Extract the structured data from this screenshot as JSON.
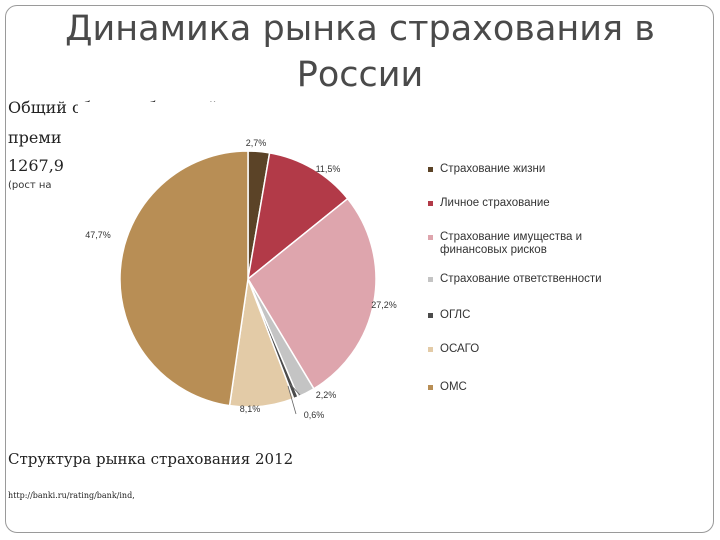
{
  "slide": {
    "title": "Динамика рынка страхования в России",
    "left_line1": "Общий объем собранной",
    "left_line2": "преми",
    "left_line3": "1267,9",
    "left_line4": "(рост на",
    "caption": "Структура рынка страхования 2012",
    "source": "http://banki.ru/rating/bank/ind,"
  },
  "chart_data": {
    "type": "pie",
    "title": "",
    "legend_position": "right",
    "categories": [
      "Страхование жизни",
      "Личное страхование",
      "Страхование имущества и финансовых рисков",
      "Страхование ответственности",
      "ОГЛС",
      "ОСАГО",
      "ОМС"
    ],
    "values": [
      2.7,
      11.5,
      27.2,
      2.2,
      0.6,
      8.1,
      47.7
    ],
    "labels": [
      "2,7%",
      "11,5%",
      "27,2%",
      "2,2%",
      "0,6%",
      "8,1%",
      "47,7%"
    ],
    "legend_lines": [
      [
        "Страхование жизни"
      ],
      [
        "Личное страхование"
      ],
      [
        "Страхование имущества и",
        "финансовых рисков"
      ],
      [
        "Страхование ответственности"
      ],
      [
        "ОГЛС"
      ],
      [
        "ОСАГО"
      ],
      [
        "ОМС"
      ]
    ],
    "colors": [
      "#5b4327",
      "#b23a48",
      "#dea5ad",
      "#c4c4c4",
      "#4b4b4b",
      "#e3cba7",
      "#b88e55"
    ]
  }
}
